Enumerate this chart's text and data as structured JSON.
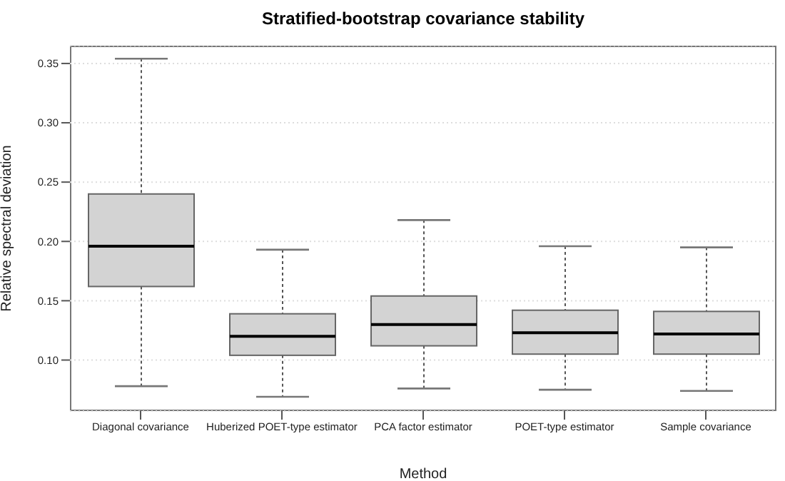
{
  "chart_data": {
    "type": "box",
    "title": "Stratified-bootstrap covariance stability",
    "xlabel": "Method",
    "ylabel": "Relative spectral deviation",
    "categories": [
      "Diagonal covariance",
      "Huberized POET-type estimator",
      "PCA factor estimator",
      "POET-type estimator",
      "Sample covariance"
    ],
    "boxes": [
      {
        "low": 0.078,
        "q1": 0.162,
        "median": 0.196,
        "q3": 0.24,
        "high": 0.354
      },
      {
        "low": 0.069,
        "q1": 0.104,
        "median": 0.12,
        "q3": 0.139,
        "high": 0.193
      },
      {
        "low": 0.076,
        "q1": 0.112,
        "median": 0.13,
        "q3": 0.154,
        "high": 0.218
      },
      {
        "low": 0.075,
        "q1": 0.105,
        "median": 0.123,
        "q3": 0.142,
        "high": 0.196
      },
      {
        "low": 0.074,
        "q1": 0.105,
        "median": 0.122,
        "q3": 0.141,
        "high": 0.195
      }
    ],
    "color": "#d3d3d3",
    "ylim": [
      0.057,
      0.365
    ],
    "yticks": [
      {
        "value": 0.1,
        "label": "0.10"
      },
      {
        "value": 0.15,
        "label": "0.15"
      },
      {
        "value": 0.2,
        "label": "0.20"
      },
      {
        "value": 0.25,
        "label": "0.25"
      },
      {
        "value": 0.3,
        "label": "0.30"
      },
      {
        "value": 0.35,
        "label": "0.35"
      }
    ],
    "grid": "y"
  }
}
